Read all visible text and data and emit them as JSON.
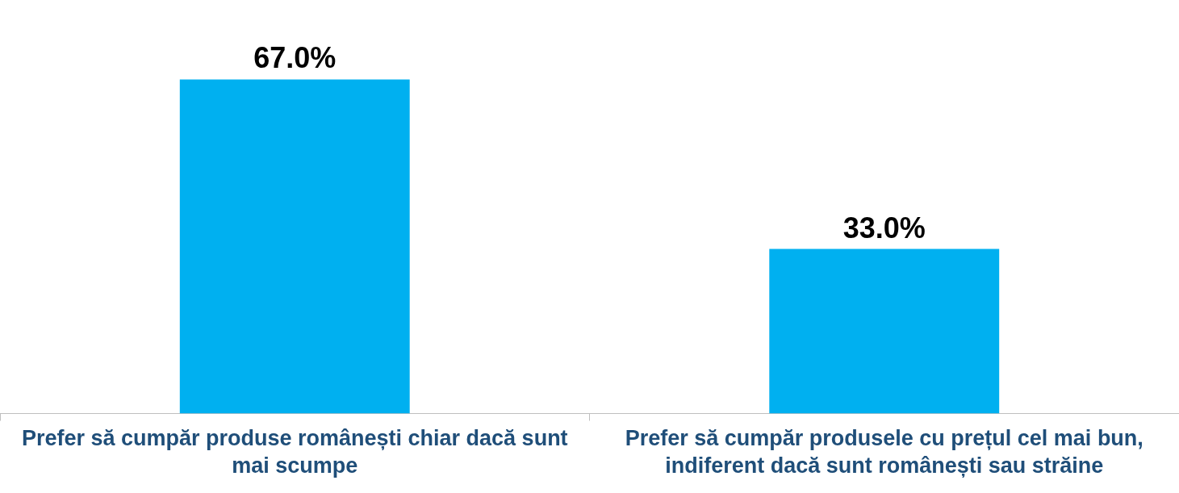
{
  "chart_data": {
    "type": "bar",
    "categories": [
      "Prefer să cumpăr produse românești chiar dacă sunt mai scumpe",
      "Prefer să cumpăr produsele cu prețul cel mai bun, indiferent dacă sunt românești sau străine"
    ],
    "values": [
      67.0,
      33.0
    ],
    "value_labels": [
      "67.0%",
      "33.0%"
    ],
    "color": "#00b0f0",
    "grid": false,
    "legend": false
  }
}
